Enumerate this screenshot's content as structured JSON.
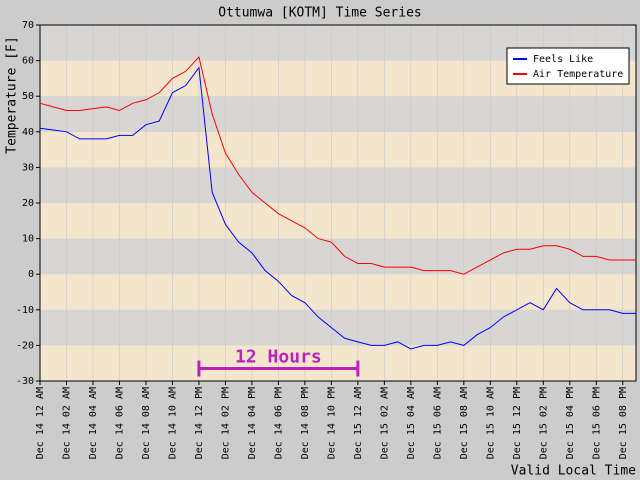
{
  "chart_data": {
    "type": "line",
    "title": "Ottumwa [KOTM] Time Series",
    "y_label": "Temperature [F]",
    "x_label": "Valid Local Time",
    "xlim": [
      0,
      45
    ],
    "xticks": [
      {
        "value": 0,
        "label": "Dec 14 12 AM"
      },
      {
        "value": 2,
        "label": "Dec 14 02 AM"
      },
      {
        "value": 4,
        "label": "Dec 14 04 AM"
      },
      {
        "value": 6,
        "label": "Dec 14 06 AM"
      },
      {
        "value": 8,
        "label": "Dec 14 08 AM"
      },
      {
        "value": 10,
        "label": "Dec 14 10 AM"
      },
      {
        "value": 12,
        "label": "Dec 14 12 PM"
      },
      {
        "value": 14,
        "label": "Dec 14 02 PM"
      },
      {
        "value": 16,
        "label": "Dec 14 04 PM"
      },
      {
        "value": 18,
        "label": "Dec 14 06 PM"
      },
      {
        "value": 20,
        "label": "Dec 14 08 PM"
      },
      {
        "value": 22,
        "label": "Dec 14 10 PM"
      },
      {
        "value": 24,
        "label": "Dec 15 12 AM"
      },
      {
        "value": 26,
        "label": "Dec 15 02 AM"
      },
      {
        "value": 28,
        "label": "Dec 15 04 AM"
      },
      {
        "value": 30,
        "label": "Dec 15 06 AM"
      },
      {
        "value": 32,
        "label": "Dec 15 08 AM"
      },
      {
        "value": 34,
        "label": "Dec 15 10 AM"
      },
      {
        "value": 36,
        "label": "Dec 15 12 PM"
      },
      {
        "value": 38,
        "label": "Dec 15 02 PM"
      },
      {
        "value": 40,
        "label": "Dec 15 04 PM"
      },
      {
        "value": 42,
        "label": "Dec 15 06 PM"
      },
      {
        "value": 44,
        "label": "Dec 15 08 PM"
      }
    ],
    "ylim": [
      -30,
      70
    ],
    "yticks": [
      -30,
      -20,
      -10,
      0,
      10,
      20,
      30,
      40,
      50,
      60,
      70
    ],
    "grid": true,
    "legend": "top-right",
    "x": [
      0,
      1,
      2,
      3,
      4,
      5,
      6,
      7,
      8,
      9,
      10,
      11,
      12,
      13,
      14,
      15,
      16,
      17,
      18,
      19,
      20,
      21,
      22,
      23,
      24,
      25,
      26,
      27,
      28,
      29,
      30,
      31,
      32,
      33,
      34,
      35,
      36,
      37,
      38,
      39,
      40,
      41,
      42,
      43,
      44,
      45
    ],
    "series": [
      {
        "name": "Feels Like",
        "color": "#0000ff",
        "values": [
          41,
          40.5,
          40,
          38,
          38,
          38,
          39,
          39,
          42,
          43,
          51,
          53,
          58,
          23,
          14,
          9,
          6,
          1,
          -2,
          -6,
          -8,
          -12,
          -15,
          -18,
          -19,
          -20,
          -20,
          -19,
          -21,
          -20,
          -20,
          -19,
          -20,
          -17,
          -15,
          -12,
          -10,
          -8,
          -10,
          -4,
          -8,
          -10,
          -10,
          -10,
          -11,
          -11
        ]
      },
      {
        "name": "Air Temperature",
        "color": "#ff0000",
        "values": [
          48,
          47,
          46,
          46,
          46.5,
          47,
          46,
          48,
          49,
          51,
          55,
          57,
          61,
          45,
          34,
          28,
          23,
          20,
          17,
          15,
          13,
          10,
          9,
          5,
          3,
          3,
          2,
          2,
          2,
          1,
          1,
          1,
          0,
          2,
          4,
          6,
          7,
          7,
          8,
          8,
          7,
          5,
          5,
          4,
          4,
          4
        ]
      }
    ],
    "annotation": {
      "text": "12 Hours",
      "x": [
        12,
        24
      ],
      "y": -26.5,
      "color": "#bb22bb"
    }
  }
}
